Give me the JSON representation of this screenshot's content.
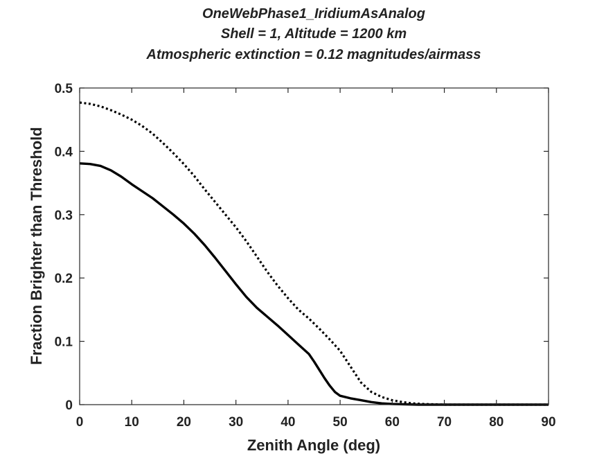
{
  "chart_data": {
    "type": "line",
    "title_lines": [
      "OneWebPhase1_IridiumAsAnalog",
      "Shell = 1,  Altitude = 1200 km",
      "Atmospheric extinction = 0.12 magnitudes/airmass"
    ],
    "xlabel": "Zenith Angle (deg)",
    "ylabel": "Fraction Brighter than Threshold",
    "xlim": [
      0,
      90
    ],
    "ylim": [
      0,
      0.5
    ],
    "xticks": [
      0,
      10,
      20,
      30,
      40,
      50,
      60,
      70,
      80,
      90
    ],
    "yticks": [
      0,
      0.1,
      0.2,
      0.3,
      0.4,
      0.5
    ],
    "ytick_labels": [
      "0",
      "0.1",
      "0.2",
      "0.3",
      "0.4",
      "0.5"
    ],
    "grid": false,
    "series": [
      {
        "style": "solid",
        "color": "#000000",
        "x": [
          0,
          2,
          4,
          6,
          8,
          10,
          12,
          14,
          16,
          18,
          20,
          22,
          24,
          26,
          28,
          30,
          32,
          34,
          36,
          38,
          40,
          42,
          44,
          45,
          46,
          47,
          48,
          49,
          50,
          52,
          54,
          56,
          58,
          60,
          65,
          70,
          80,
          90
        ],
        "y": [
          0.381,
          0.38,
          0.377,
          0.37,
          0.36,
          0.348,
          0.337,
          0.326,
          0.313,
          0.3,
          0.286,
          0.27,
          0.252,
          0.232,
          0.211,
          0.19,
          0.17,
          0.153,
          0.139,
          0.125,
          0.11,
          0.095,
          0.08,
          0.068,
          0.055,
          0.042,
          0.03,
          0.02,
          0.014,
          0.01,
          0.007,
          0.004,
          0.002,
          0.001,
          0.0,
          0.0,
          0.0,
          0.0
        ]
      },
      {
        "style": "dotted",
        "color": "#000000",
        "x": [
          0,
          2,
          4,
          6,
          8,
          10,
          12,
          14,
          16,
          18,
          20,
          22,
          24,
          26,
          28,
          30,
          32,
          34,
          36,
          38,
          40,
          42,
          44,
          46,
          48,
          50,
          52,
          54,
          56,
          58,
          60,
          62,
          64,
          66,
          70,
          80,
          90
        ],
        "y": [
          0.477,
          0.475,
          0.471,
          0.465,
          0.458,
          0.45,
          0.44,
          0.428,
          0.413,
          0.397,
          0.38,
          0.361,
          0.34,
          0.32,
          0.3,
          0.28,
          0.258,
          0.234,
          0.21,
          0.188,
          0.168,
          0.15,
          0.136,
          0.12,
          0.103,
          0.085,
          0.06,
          0.035,
          0.02,
          0.012,
          0.007,
          0.004,
          0.002,
          0.001,
          0.0,
          0.0,
          0.0
        ]
      }
    ]
  }
}
